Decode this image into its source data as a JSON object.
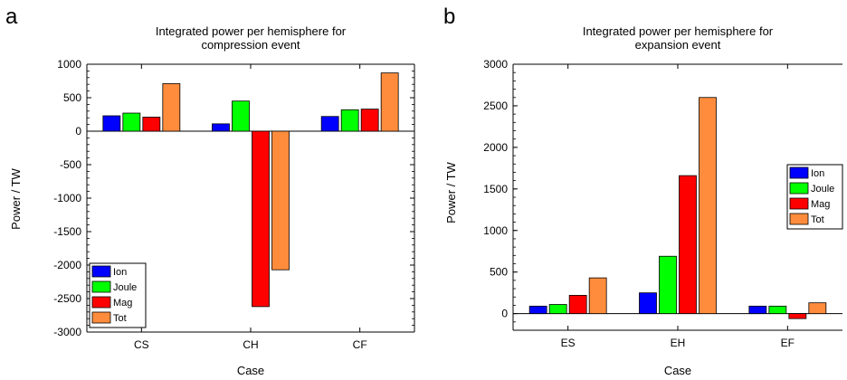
{
  "chart_data": [
    {
      "panel": "a",
      "type": "bar",
      "title": "Integrated power per hemisphere for compression event",
      "title_lines": [
        "Integrated power per hemisphere for",
        "compression event"
      ],
      "xlabel": "Case",
      "ylabel": "Power / TW",
      "categories": [
        "CS",
        "CH",
        "CF"
      ],
      "ylim": [
        -3000,
        1000
      ],
      "yticks": [
        1000,
        500,
        0,
        -500,
        -1000,
        -1500,
        -2000,
        -2500,
        -3000
      ],
      "legend_position": "bottom-left",
      "series": [
        {
          "name": "Ion",
          "color": "#0000ff",
          "values": [
            230,
            110,
            220
          ]
        },
        {
          "name": "Joule",
          "color": "#00ff00",
          "values": [
            270,
            450,
            320
          ]
        },
        {
          "name": "Mag",
          "color": "#ff0000",
          "values": [
            210,
            -2620,
            330
          ]
        },
        {
          "name": "Tot",
          "color": "#ff8c3c",
          "values": [
            710,
            -2070,
            870
          ]
        }
      ]
    },
    {
      "panel": "b",
      "type": "bar",
      "title": "Integrated power per hemisphere for expansion event",
      "title_lines": [
        "Integrated power per hemisphere for",
        "expansion event"
      ],
      "xlabel": "Case",
      "ylabel": "Power / TW",
      "categories": [
        "ES",
        "EH",
        "EF"
      ],
      "ylim": [
        -200,
        3000
      ],
      "yticks": [
        3000,
        2500,
        2000,
        1500,
        1000,
        500,
        0
      ],
      "legend_position": "right",
      "series": [
        {
          "name": "Ion",
          "color": "#0000ff",
          "values": [
            90,
            250,
            90
          ]
        },
        {
          "name": "Joule",
          "color": "#00ff00",
          "values": [
            110,
            690,
            90
          ]
        },
        {
          "name": "Mag",
          "color": "#ff0000",
          "values": [
            220,
            1660,
            -60
          ]
        },
        {
          "name": "Tot",
          "color": "#ff8c3c",
          "values": [
            430,
            2600,
            130
          ]
        }
      ]
    }
  ]
}
